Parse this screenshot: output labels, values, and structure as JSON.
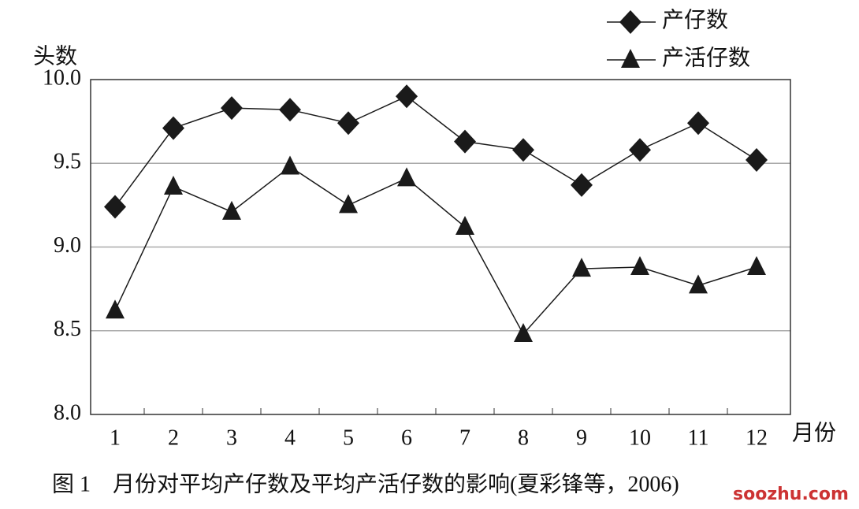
{
  "chart_data": {
    "type": "line",
    "caption": "图 1　月份对平均产仔数及平均产活仔数的影响(夏彩锋等，2006)",
    "y_label": "头数",
    "x_label": "月份",
    "watermark": "soozhu.com",
    "categories": [
      "1",
      "2",
      "3",
      "4",
      "5",
      "6",
      "7",
      "8",
      "9",
      "10",
      "11",
      "12"
    ],
    "series": [
      {
        "name": "产仔数",
        "marker": "diamond",
        "color": "#1a1a1a",
        "values": [
          9.24,
          9.71,
          9.83,
          9.82,
          9.74,
          9.9,
          9.63,
          9.58,
          9.37,
          9.58,
          9.74,
          9.52
        ]
      },
      {
        "name": "产活仔数",
        "marker": "triangle",
        "color": "#1a1a1a",
        "values": [
          8.62,
          9.36,
          9.21,
          9.48,
          9.25,
          9.41,
          9.12,
          8.48,
          8.87,
          8.88,
          8.77,
          8.88
        ]
      }
    ],
    "ylim": [
      8,
      10
    ],
    "yticks": [
      {
        "value": 8,
        "label": "8.0"
      },
      8.5,
      {
        "value": 9,
        "label": "9.0"
      },
      9.5,
      {
        "value": 10,
        "label": "10.0"
      }
    ],
    "grid": true,
    "legend": "top-right"
  }
}
